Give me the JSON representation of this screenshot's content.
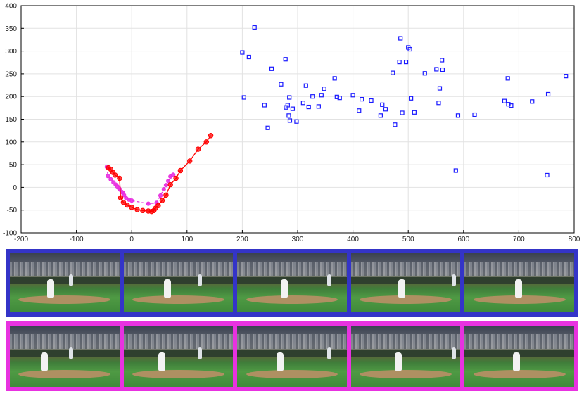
{
  "chart_data": {
    "type": "scatter",
    "title": "",
    "xlabel": "",
    "ylabel": "",
    "xlim": [
      -200,
      800
    ],
    "ylim": [
      -100,
      400
    ],
    "xticks": [
      -200,
      -100,
      0,
      100,
      200,
      300,
      400,
      500,
      600,
      700,
      800
    ],
    "yticks": [
      -100,
      -50,
      0,
      50,
      100,
      150,
      200,
      250,
      300,
      350,
      400
    ],
    "grid": true,
    "series": [
      {
        "kind": "markers",
        "marker": "square",
        "color": "#1a1aff",
        "points": [
          [
            200,
            297
          ],
          [
            203,
            198
          ],
          [
            212,
            287
          ],
          [
            222,
            352
          ],
          [
            240,
            181
          ],
          [
            246,
            131
          ],
          [
            253,
            261
          ],
          [
            270,
            227
          ],
          [
            278,
            282
          ],
          [
            279,
            176
          ],
          [
            282,
            181
          ],
          [
            284,
            158
          ],
          [
            285,
            198
          ],
          [
            286,
            147
          ],
          [
            291,
            173
          ],
          [
            298,
            145
          ],
          [
            310,
            186
          ],
          [
            315,
            224
          ],
          [
            320,
            177
          ],
          [
            327,
            200
          ],
          [
            338,
            178
          ],
          [
            343,
            203
          ],
          [
            348,
            217
          ],
          [
            367,
            240
          ],
          [
            371,
            199
          ],
          [
            376,
            197
          ],
          [
            400,
            203
          ],
          [
            411,
            169
          ],
          [
            416,
            194
          ],
          [
            433,
            191
          ],
          [
            450,
            158
          ],
          [
            453,
            182
          ],
          [
            459,
            172
          ],
          [
            472,
            252
          ],
          [
            476,
            138
          ],
          [
            484,
            276
          ],
          [
            486,
            328
          ],
          [
            489,
            164
          ],
          [
            496,
            276
          ],
          [
            500,
            308
          ],
          [
            503,
            304
          ],
          [
            505,
            196
          ],
          [
            511,
            165
          ],
          [
            530,
            251
          ],
          [
            551,
            260
          ],
          [
            555,
            186
          ],
          [
            557,
            218
          ],
          [
            561,
            280
          ],
          [
            562,
            259
          ],
          [
            586,
            37
          ],
          [
            590,
            158
          ],
          [
            620,
            160
          ],
          [
            674,
            190
          ],
          [
            680,
            240
          ],
          [
            681,
            183
          ],
          [
            686,
            180
          ],
          [
            724,
            189
          ],
          [
            751,
            27
          ],
          [
            753,
            205
          ],
          [
            785,
            245
          ]
        ]
      },
      {
        "kind": "line",
        "style": "dashed",
        "color": "#e832e0",
        "points": [
          [
            -45,
            45
          ],
          [
            -43,
            25
          ],
          [
            -38,
            18
          ],
          [
            -33,
            11
          ],
          [
            -29,
            6
          ],
          [
            -26,
            2
          ],
          [
            -23,
            -2
          ],
          [
            -21,
            -5
          ],
          [
            -18,
            -10
          ],
          [
            -16,
            -12
          ],
          [
            -14,
            -17
          ],
          [
            -10,
            -24
          ],
          [
            -5,
            -27
          ],
          [
            0,
            -29
          ],
          [
            30,
            -36
          ],
          [
            45,
            -34
          ],
          [
            52,
            -18
          ],
          [
            58,
            -4
          ],
          [
            62,
            5
          ],
          [
            66,
            14
          ],
          [
            70,
            24
          ],
          [
            75,
            28
          ]
        ]
      },
      {
        "kind": "line",
        "style": "solid-markers",
        "color": "#ff0000",
        "points": [
          [
            -42,
            43
          ],
          [
            -38,
            40
          ],
          [
            -34,
            33
          ],
          [
            -30,
            27
          ],
          [
            -22,
            20
          ],
          [
            -20,
            -23
          ],
          [
            -15,
            -33
          ],
          [
            -8,
            -39
          ],
          [
            0,
            -44
          ],
          [
            10,
            -49
          ],
          [
            20,
            -51
          ],
          [
            30,
            -52
          ],
          [
            36,
            -53
          ],
          [
            40,
            -51
          ],
          [
            43,
            -46
          ],
          [
            48,
            -40
          ],
          [
            55,
            -29
          ],
          [
            62,
            -17
          ],
          [
            70,
            6
          ],
          [
            80,
            20
          ],
          [
            88,
            37
          ],
          [
            105,
            58
          ],
          [
            120,
            84
          ],
          [
            135,
            100
          ],
          [
            143,
            114
          ]
        ]
      }
    ]
  },
  "frame_strips": [
    {
      "name": "blue",
      "border_color": "#3434c8",
      "frames": 5
    },
    {
      "name": "magenta",
      "border_color": "#e832e0",
      "frames": 5
    }
  ]
}
